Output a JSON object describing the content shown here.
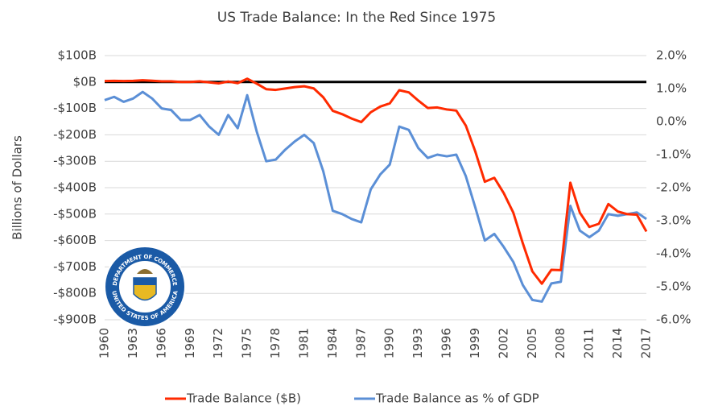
{
  "chart_data": {
    "type": "line",
    "title": "US Trade Balance: In the Red Since 1975",
    "y_label": "Billions of Dollars",
    "logo_text": [
      "DEPARTMENT OF COMMERCE",
      "UNITED STATES OF AMERICA"
    ],
    "x": [
      1960,
      1961,
      1962,
      1963,
      1964,
      1965,
      1966,
      1967,
      1968,
      1969,
      1970,
      1971,
      1972,
      1973,
      1974,
      1975,
      1976,
      1977,
      1978,
      1979,
      1980,
      1981,
      1982,
      1983,
      1984,
      1985,
      1986,
      1987,
      1988,
      1989,
      1990,
      1991,
      1992,
      1993,
      1994,
      1995,
      1996,
      1997,
      1998,
      1999,
      2000,
      2001,
      2002,
      2003,
      2004,
      2005,
      2006,
      2007,
      2008,
      2009,
      2010,
      2011,
      2012,
      2013,
      2014,
      2015,
      2016,
      2017
    ],
    "xlim": [
      1960,
      2017
    ],
    "xticks": [
      1960,
      1963,
      1966,
      1969,
      1972,
      1975,
      1978,
      1981,
      1984,
      1987,
      1990,
      1993,
      1996,
      1999,
      2002,
      2005,
      2008,
      2011,
      2014,
      2017
    ],
    "ylim": [
      -900,
      100
    ],
    "yticks": [
      {
        "value": 100,
        "label": "$100B"
      },
      {
        "value": 0,
        "label": "$0B"
      },
      {
        "value": -100,
        "label": "-$100B"
      },
      {
        "value": -200,
        "label": "-$200B"
      },
      {
        "value": -300,
        "label": "-$300B"
      },
      {
        "value": -400,
        "label": "-$400B"
      },
      {
        "value": -500,
        "label": "-$500B"
      },
      {
        "value": -600,
        "label": "-$600B"
      },
      {
        "value": -700,
        "label": "-$700B"
      },
      {
        "value": -800,
        "label": "-$800B"
      },
      {
        "value": -900,
        "label": "-$900B"
      }
    ],
    "y2lim": [
      -6,
      2
    ],
    "y2ticks": [
      {
        "value": 2,
        "label": "2.0%"
      },
      {
        "value": 1,
        "label": "1.0%"
      },
      {
        "value": 0,
        "label": "0.0%"
      },
      {
        "value": -1,
        "label": "-1.0%"
      },
      {
        "value": -2,
        "label": "-2.0%"
      },
      {
        "value": -3,
        "label": "-3.0%"
      },
      {
        "value": -4,
        "label": "-4.0%"
      },
      {
        "value": -5,
        "label": "-5.0%"
      },
      {
        "value": -6,
        "label": "-6.0%"
      }
    ],
    "grid": true,
    "zero_line": true,
    "legend": "bottom",
    "series": [
      {
        "name": "Trade Balance ($B)",
        "color": "#ff2a00",
        "values": [
          3.5,
          4.5,
          3.4,
          4.2,
          6.8,
          4.9,
          2.4,
          2.6,
          0.3,
          0.1,
          2.3,
          -1.3,
          -5.4,
          1.9,
          -4.3,
          12.4,
          -6.1,
          -27.2,
          -29.8,
          -24.6,
          -19.4,
          -16.2,
          -24.2,
          -57.8,
          -109,
          -121.9,
          -138.5,
          -151.7,
          -114.6,
          -93.1,
          -80.9,
          -31.1,
          -39.2,
          -70.3,
          -98.5,
          -96.4,
          -104.1,
          -108.3,
          -164.9,
          -263.2,
          -377.6,
          -362.7,
          -421.2,
          -494.8,
          -610.8,
          -716.7,
          -763.5,
          -711,
          -712,
          -381.3,
          -494.7,
          -548.6,
          -536.8,
          -461.9,
          -490.3,
          -500.4,
          -502,
          -566
        ]
      },
      {
        "name": "Trade Balance as % of GDP",
        "color": "#5b8fd6",
        "axis": "y2",
        "values": [
          0.65,
          0.75,
          0.6,
          0.7,
          0.9,
          0.7,
          0.4,
          0.35,
          0.05,
          0.05,
          0.2,
          -0.15,
          -0.4,
          0.2,
          -0.2,
          0.8,
          -0.3,
          -1.2,
          -1.15,
          -0.85,
          -0.6,
          -0.4,
          -0.65,
          -1.5,
          -2.7,
          -2.8,
          -2.95,
          -3.05,
          -2.05,
          -1.6,
          -1.3,
          -0.15,
          -0.25,
          -0.8,
          -1.1,
          -1.0,
          -1.05,
          -1.0,
          -1.65,
          -2.6,
          -3.6,
          -3.4,
          -3.8,
          -4.25,
          -4.95,
          -5.4,
          -5.45,
          -4.9,
          -4.85,
          -2.55,
          -3.3,
          -3.5,
          -3.3,
          -2.8,
          -2.85,
          -2.8,
          -2.75,
          -2.95
        ]
      }
    ]
  }
}
